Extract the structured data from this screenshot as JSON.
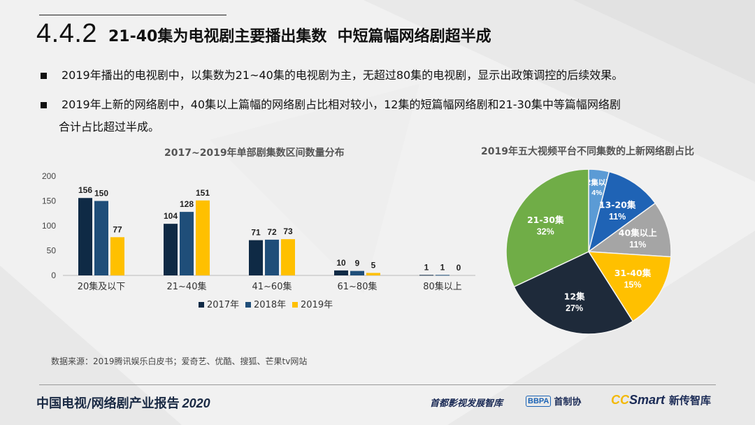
{
  "header": {
    "section_number": "4.4.2",
    "title": "21-40集为电视剧主要播出集数  中短篇幅网络剧超半成"
  },
  "bullets": [
    "2019年播出的电视剧中，以集数为21~40集的电视剧为主，无超过80集的电视剧，显示出政策调控的后续效果。",
    "2019年上新的网络剧中，40集以上篇幅的网络剧占比相对较小，12集的短篇幅网络剧和21-30集中等篇幅网络剧",
    "合计占比超过半成。"
  ],
  "chart_data": [
    {
      "type": "bar",
      "title": "2017~2019年单部剧集数区间数量分布",
      "categories": [
        "20集及以下",
        "21~40集",
        "41~60集",
        "61~80集",
        "80集以上"
      ],
      "series": [
        {
          "name": "2017年",
          "values": [
            156,
            104,
            71,
            10,
            1
          ],
          "color": "#0f2a45"
        },
        {
          "name": "2018年",
          "values": [
            150,
            128,
            72,
            9,
            1
          ],
          "color": "#1f4e79"
        },
        {
          "name": "2019年",
          "values": [
            77,
            151,
            73,
            5,
            0
          ],
          "color": "#ffc000"
        }
      ],
      "yticks": [
        "0",
        "50",
        "100",
        "150",
        "200"
      ],
      "ylim": [
        0,
        200
      ],
      "legend_position": "bottom",
      "grid": false
    },
    {
      "type": "pie",
      "title": "2019年五大视频平台不同集数的上新网络剧占比",
      "slices": [
        {
          "label": "12集以下",
          "pct_label": "4%",
          "value": 4,
          "color": "#5b9bd5"
        },
        {
          "label": "13-20集",
          "pct_label": "11%",
          "value": 11,
          "color": "#1f63b5"
        },
        {
          "label": "40集以上",
          "pct_label": "11%",
          "value": 11,
          "color": "#a5a5a5"
        },
        {
          "label": "31-40集",
          "pct_label": "15%",
          "value": 15,
          "color": "#ffc000"
        },
        {
          "label": "12集",
          "pct_label": "27%",
          "value": 27,
          "color": "#1e2a3a"
        },
        {
          "label": "21-30集",
          "pct_label": "32%",
          "value": 32,
          "color": "#70ad47"
        }
      ]
    }
  ],
  "source": "数据来源：2019腾讯娱乐白皮书；爱奇艺、优酷、搜狐、芒果tv网站",
  "footer": {
    "report_title": "中国电视/网络剧产业报告",
    "year": "2020",
    "logo1": "首都影视发展智库",
    "logo2_mark": "BBPA",
    "logo2_text": "首制协",
    "logo3_cc": "CC",
    "logo3_smart": "Smart",
    "logo3_cn": "新传智库"
  }
}
